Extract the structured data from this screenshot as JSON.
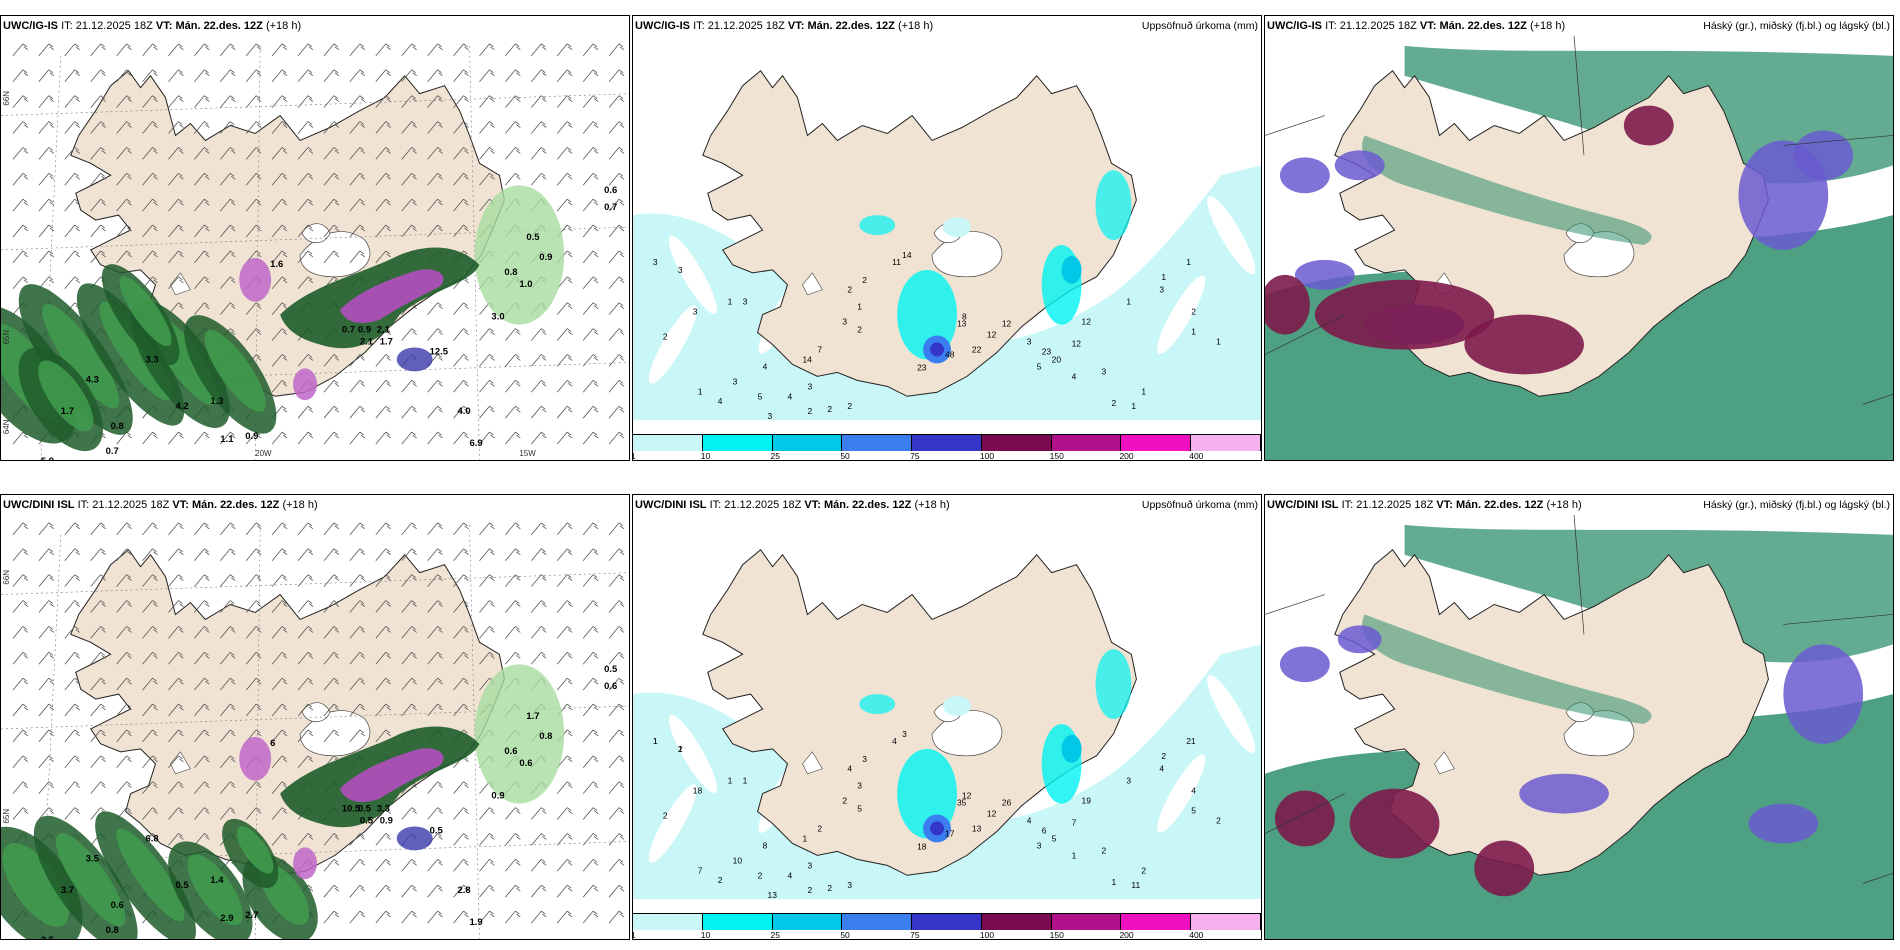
{
  "panels": [
    {
      "id": "p1",
      "model": "UWC/IG-IS",
      "it_label": "IT:",
      "it": "21.12.2025 18Z",
      "vt_label": "VT:",
      "vt": "Mán. 22.des. 12Z",
      "lead": "(+18 h)",
      "right_title": "",
      "labels": [
        "0.6",
        "0.7",
        "0.5",
        "0.9",
        "1.0",
        "0.8",
        "2.1",
        "1.7",
        "12.5",
        "4.0",
        "3.3",
        "4.3",
        "1.7",
        "4.2",
        "1.3",
        "0.8",
        "0.7",
        "0.9",
        "1.1",
        "5.9",
        "6.9",
        "0.9",
        "0.7",
        "2.1",
        "3.0",
        "1.6"
      ],
      "lat_labels": [
        "66N",
        "65N",
        "64N"
      ],
      "lon_labels": [
        "20W",
        "15W"
      ]
    },
    {
      "id": "p2",
      "model": "UWC/IG-IS",
      "it_label": "IT:",
      "it": "21.12.2025 18Z",
      "vt_label": "VT:",
      "vt": "Mán. 22.des. 12Z",
      "lead": "(+18 h)",
      "right_title": "Uppsöfnuð úrkoma (mm)",
      "labels": [
        "3",
        "3",
        "3",
        "2",
        "1",
        "3",
        "1",
        "4",
        "3",
        "4",
        "5",
        "3",
        "2",
        "2",
        "2",
        "3",
        "4",
        "14",
        "7",
        "11",
        "14",
        "2",
        "2",
        "1",
        "3",
        "2",
        "8",
        "22",
        "48",
        "23",
        "12",
        "12",
        "13",
        "12",
        "12",
        "20",
        "23",
        "3",
        "5",
        "4",
        "3",
        "2",
        "1",
        "1",
        "1",
        "1",
        "1",
        "2",
        "3",
        "1",
        "1"
      ],
      "legend": [
        "1",
        "10",
        "25",
        "50",
        "75",
        "100",
        "150",
        "200",
        "400"
      ]
    },
    {
      "id": "p3",
      "model": "UWC/IG-IS",
      "it_label": "IT:",
      "it": "21.12.2025 18Z",
      "vt_label": "VT:",
      "vt": "Mán. 22.des. 12Z",
      "lead": "(+18 h)",
      "right_title": "Háský (gr.), miðský (fj.bl.) og lágský (bl.)"
    },
    {
      "id": "p4",
      "model": "UWC/DINI ISL",
      "it_label": "IT:",
      "it": "21.12.2025 18Z",
      "vt_label": "VT:",
      "vt": "Mán. 22.des. 12Z",
      "lead": "(+18 h)",
      "right_title": "",
      "labels": [
        "0.5",
        "0.6",
        "1.7",
        "0.8",
        "0.6",
        "0.6",
        "0.5",
        "0.9",
        "0.5",
        "2.8",
        "6.8",
        "3.5",
        "3.7",
        "0.5",
        "1.4",
        "0.6",
        "0.8",
        "2.7",
        "2.9",
        "2.5",
        "1.9",
        "0.5",
        "10.5",
        "3.3",
        "0.9",
        "6"
      ],
      "lat_labels": [
        "66N",
        "65N"
      ],
      "lon_labels": []
    },
    {
      "id": "p5",
      "model": "UWC/DINI ISL",
      "it_label": "IT:",
      "it": "21.12.2025 18Z",
      "vt_label": "VT:",
      "vt": "Mán. 22.des. 12Z",
      "lead": "(+18 h)",
      "right_title": "Uppsöfnuð úrkoma (mm)",
      "labels": [
        "1",
        "1",
        "18",
        "2",
        "1",
        "1",
        "7",
        "2",
        "10",
        "8",
        "2",
        "3",
        "2",
        "2",
        "3",
        "13",
        "4",
        "1",
        "2",
        "4",
        "3",
        "3",
        "4",
        "3",
        "2",
        "5",
        "12",
        "13",
        "17",
        "18",
        "26",
        "12",
        "35",
        "19",
        "7",
        "5",
        "6",
        "4",
        "3",
        "1",
        "2",
        "1",
        "11",
        "2",
        "3",
        "2",
        "21",
        "4",
        "4",
        "5",
        "2",
        "1",
        "2"
      ],
      "legend": [
        "1",
        "10",
        "25",
        "50",
        "75",
        "100",
        "150",
        "200",
        "400"
      ]
    },
    {
      "id": "p6",
      "model": "UWC/DINI ISL",
      "it_label": "IT:",
      "it": "21.12.2025 18Z",
      "vt_label": "VT:",
      "vt": "Mán. 22.des. 12Z",
      "lead": "(+18 h)",
      "right_title": "Háský (gr.), miðský (fj.bl.) og lágský (bl.)"
    }
  ],
  "colors": {
    "land": "#f1e3d3",
    "precip_legend": [
      "#c9f7f7",
      "#00f2f2",
      "#00c8e6",
      "#3a7ef0",
      "#3535c8",
      "#7a0a50",
      "#b0108a",
      "#f010c0",
      "#f5b0f0"
    ],
    "green_dark": "#1e5c2a",
    "green_mid": "#3f9a4c",
    "green_light": "#a8dca0",
    "high_cloud": "#2f8f6c",
    "mid_cloud": "#6a5ad0",
    "low_cloud": "#7d1a4a"
  }
}
